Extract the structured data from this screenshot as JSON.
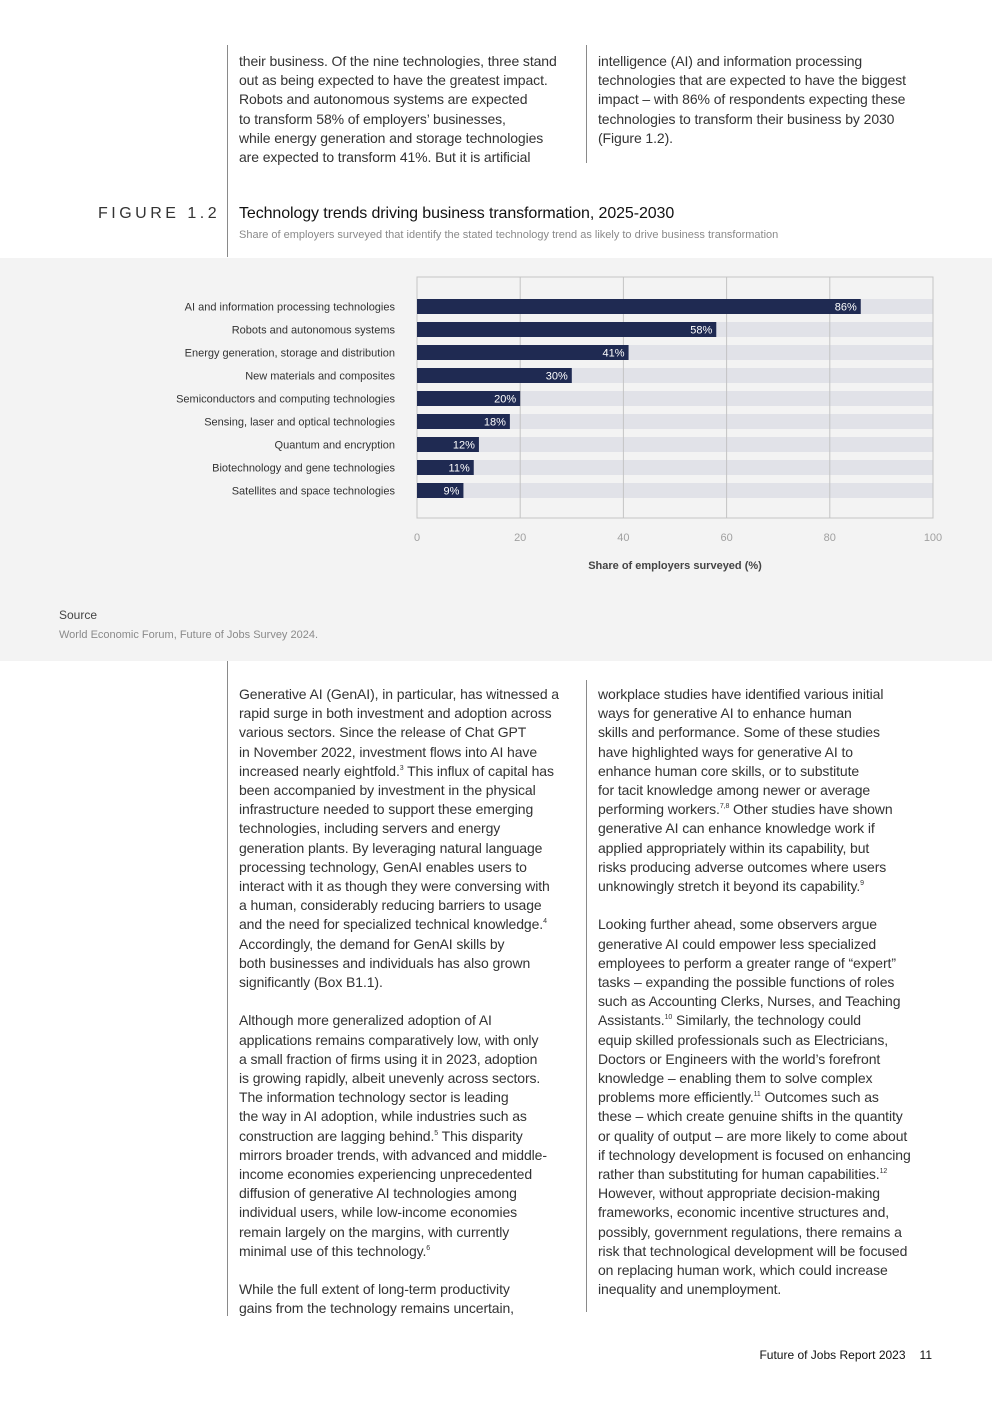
{
  "top_text": {
    "left": "their business. Of the nine technologies, three stand\nout as being expected to have the greatest impact.\nRobots and autonomous systems are expected\nto transform 58% of employers’ businesses,\nwhile energy generation and storage technologies\nare expected to transform 41%. But it is artificial",
    "right": "intelligence (AI) and information processing\ntechnologies that are expected to have the biggest\nimpact – with 86% of respondents expecting these\ntechnologies to transform their business by 2030\n(Figure 1.2)."
  },
  "figure": {
    "label": "FIGURE 1.2",
    "title": "Technology trends driving business transformation, 2025-2030",
    "subtitle": "Share of employers surveyed that identify the stated technology trend as likely to drive business transformation",
    "source_heading": "Source",
    "source_text": "World Economic Forum, Future of Jobs Survey 2024."
  },
  "chart_data": {
    "type": "bar",
    "orientation": "horizontal",
    "categories": [
      "AI and information processing technologies",
      "Robots and autonomous systems",
      "Energy generation, storage and distribution",
      "New materials and composites",
      "Semiconductors and computing technologies",
      "Sensing, laser and optical technologies",
      "Quantum and encryption",
      "Biotechnology and gene technologies",
      "Satellites and space technologies"
    ],
    "values": [
      86,
      58,
      41,
      30,
      20,
      18,
      12,
      11,
      9
    ],
    "data_labels": [
      "86%",
      "58%",
      "41%",
      "30%",
      "20%",
      "18%",
      "12%",
      "11%",
      "9%"
    ],
    "xlabel": "Share of employers surveyed (%)",
    "xlim": [
      0,
      100
    ],
    "xticks": [
      "0",
      "20",
      "40",
      "60",
      "80",
      "100"
    ],
    "grid": true,
    "colors": {
      "bar": "#1f2a52",
      "track": "#e1e2e8",
      "grid": "#c4c4c4",
      "panel": "#f3f3f3",
      "label": "#333333",
      "tick": "#a0a0a0"
    }
  },
  "body_text": {
    "left": [
      [
        "Generative AI (GenAI), in particular, has witnessed a\nrapid surge in both investment and adoption across\nvarious sectors. Since the release of Chat GPT\nin November 2022, investment flows into AI have\nincreased nearly eightfold.",
        "3",
        " This influx of capital has\nbeen accompanied by investment in the physical\ninfrastructure needed to support these emerging\ntechnologies, including servers and energy\ngeneration plants. By leveraging natural language\nprocessing technology, GenAI enables users to\ninteract with it as though they were conversing with\na human, considerably reducing barriers to usage\nand the need for specialized technical knowledge.",
        "4",
        "\nAccordingly, the demand for GenAI skills by\nboth businesses and individuals has also grown\nsignificantly (Box B1.1)."
      ],
      [
        "Although more generalized adoption of AI\napplications remains comparatively low, with only\na small fraction of firms using it in 2023, adoption\nis growing rapidly, albeit unevenly across sectors.\nThe information technology sector is leading\nthe way in AI adoption, while industries such as\nconstruction are lagging behind.",
        "5",
        " This disparity\nmirrors broader trends, with advanced and middle-\nincome economies experiencing unprecedented\ndiffusion of generative AI technologies among\nindividual users, while low-income economies\nremain largely on the margins, with currently\nminimal use of this technology.",
        "6",
        ""
      ],
      [
        "While the full extent of long-term productivity\ngains from the technology remains uncertain,"
      ]
    ],
    "right": [
      [
        "workplace studies have identified various initial\nways for generative AI to enhance human\nskills and performance. Some of these studies\nhave highlighted ways for generative AI to\nenhance human core skills, or to substitute\nfor tacit knowledge among newer or average\nperforming workers.",
        "7,8",
        " Other studies have shown\ngenerative AI can enhance knowledge work if\napplied appropriately within its capability, but\nrisks producing adverse outcomes where users\nunknowingly stretch it beyond its capability.",
        "9",
        ""
      ],
      [
        "Looking further ahead, some observers argue\ngenerative AI could empower less specialized\nemployees to perform a greater range of “expert”\ntasks – expanding the possible functions of roles\nsuch as Accounting Clerks, Nurses, and Teaching\nAssistants.",
        "10",
        " Similarly, the technology could\nequip skilled professionals such as Electricians,\nDoctors or Engineers with the world’s forefront\nknowledge – enabling them to solve complex\nproblems more efficiently.",
        "11",
        " Outcomes such as\nthese – which create genuine shifts in the quantity\nor quality of output – are more likely to come about\nif technology development is focused on enhancing\nrather than substituting for human capabilities.",
        "12",
        "\nHowever, without appropriate decision-making\nframeworks, economic incentive structures and,\npossibly, government regulations, there remains a\nrisk that technological development will be focused\non replacing human work, which could increase\ninequality and unemployment."
      ]
    ]
  },
  "footer": {
    "report": "Future of Jobs Report 2023",
    "page": "11"
  }
}
